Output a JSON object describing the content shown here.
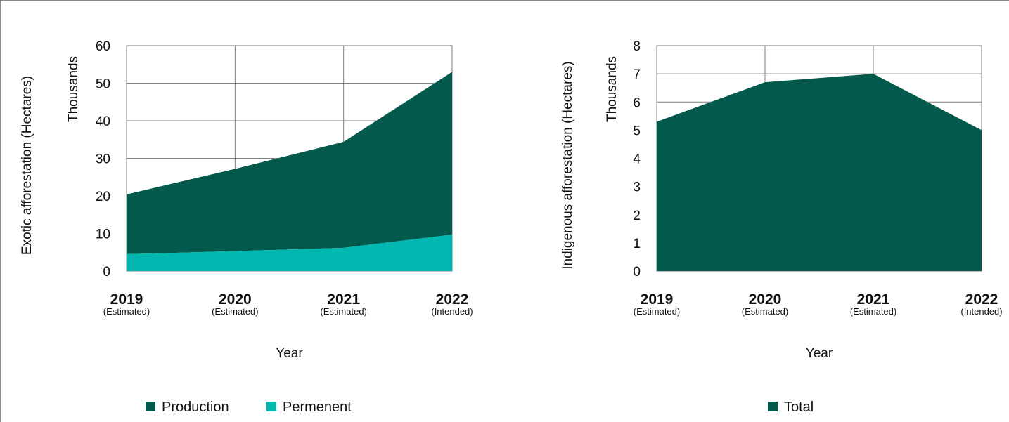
{
  "chart_data": [
    {
      "type": "area",
      "stacked": true,
      "categories": [
        "2019",
        "2020",
        "2021",
        "2022"
      ],
      "category_notes": [
        "(Estimated)",
        "(Estimated)",
        "(Estimated)",
        "(Intended)"
      ],
      "series": [
        {
          "name": "Permenent",
          "values": [
            4.5,
            5.3,
            6.2,
            9.7
          ],
          "color": "#00b8b0"
        },
        {
          "name": "Production",
          "values": [
            15.9,
            21.9,
            28.2,
            43.3
          ],
          "color": "#035a4c"
        }
      ],
      "xlabel": "Year",
      "ylabel": "Exotic afforestation (Hectares)",
      "yunit": "Thousands",
      "ylim": [
        0,
        60
      ],
      "yticks": [
        0,
        10,
        20,
        30,
        40,
        50,
        60
      ],
      "legend": [
        "Production",
        "Permenent"
      ],
      "legend_position": "bottom",
      "grid": true
    },
    {
      "type": "area",
      "categories": [
        "2019",
        "2020",
        "2021",
        "2022"
      ],
      "category_notes": [
        "(Estimated)",
        "(Estimated)",
        "(Estimated)",
        "(Intended)"
      ],
      "series": [
        {
          "name": "Total",
          "values": [
            5.3,
            6.7,
            7.0,
            5.0
          ],
          "color": "#035a4c"
        }
      ],
      "xlabel": "Year",
      "ylabel": "Indigenous afforestation (Hectares)",
      "yunit": "Thousands",
      "ylim": [
        0,
        8
      ],
      "yticks": [
        0,
        1,
        2,
        3,
        4,
        5,
        6,
        7,
        8
      ],
      "legend": [
        "Total"
      ],
      "legend_position": "bottom",
      "grid": true
    }
  ],
  "colors": {
    "grid": "#7f7f7f",
    "text": "#111111"
  }
}
